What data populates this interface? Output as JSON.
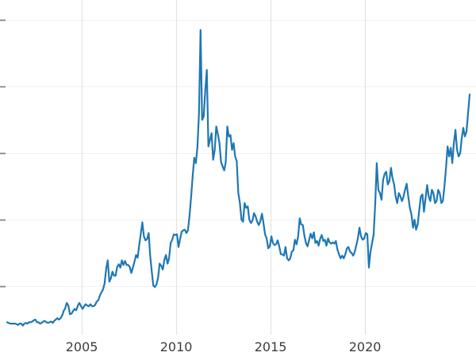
{
  "chart_data": {
    "type": "line",
    "title": "",
    "xlabel": "",
    "ylabel": "",
    "x_unit": "decimal-year",
    "x_start": 2001.042,
    "x_step": 0.0833333,
    "values": [
      4.6,
      4.5,
      4.4,
      4.4,
      4.4,
      4.4,
      4.3,
      4.2,
      4.4,
      4.4,
      4.1,
      4.4,
      4.5,
      4.4,
      4.6,
      4.6,
      4.7,
      4.9,
      5.0,
      4.6,
      4.6,
      4.4,
      4.5,
      4.7,
      4.8,
      4.6,
      4.5,
      4.6,
      4.7,
      4.5,
      4.8,
      5.0,
      5.2,
      5.0,
      5.2,
      5.6,
      6.3,
      6.7,
      7.5,
      7.1,
      5.8,
      5.9,
      6.3,
      6.6,
      6.4,
      7.1,
      7.5,
      7.0,
      6.6,
      7.0,
      7.3,
      7.1,
      7.0,
      7.3,
      7.0,
      7.0,
      7.2,
      7.7,
      7.9,
      8.6,
      9.1,
      9.5,
      10.4,
      12.6,
      13.9,
      10.7,
      11.2,
      12.2,
      11.6,
      11.6,
      12.9,
      13.3,
      12.8,
      13.9,
      13.2,
      13.8,
      13.2,
      13.2,
      12.9,
      12.0,
      12.8,
      13.7,
      14.7,
      14.3,
      16.2,
      17.8,
      19.6,
      17.5,
      16.9,
      17.1,
      18.0,
      14.6,
      12.2,
      10.1,
      9.9,
      10.3,
      11.3,
      13.4,
      13.1,
      12.5,
      14.0,
      14.7,
      13.4,
      14.2,
      16.5,
      17.0,
      17.8,
      17.7,
      17.8,
      15.9,
      17.1,
      18.2,
      18.4,
      18.5,
      18.0,
      18.4,
      20.6,
      23.4,
      26.6,
      29.3,
      28.5,
      30.8,
      35.9,
      48.5,
      35.0,
      35.5,
      39.5,
      42.5,
      31.0,
      32.0,
      33.0,
      29.0,
      30.5,
      34.0,
      32.9,
      31.5,
      28.7,
      28.0,
      27.4,
      28.6,
      34.0,
      32.5,
      32.7,
      30.5,
      31.5,
      29.5,
      28.8,
      24.0,
      22.5,
      20.0,
      19.7,
      22.5,
      21.8,
      22.0,
      20.0,
      19.5,
      19.9,
      21.0,
      20.5,
      19.7,
      19.2,
      19.8,
      20.9,
      19.5,
      17.8,
      17.2,
      15.7,
      16.0,
      17.5,
      16.5,
      16.2,
      16.3,
      16.9,
      16.0,
      14.8,
      14.8,
      14.6,
      15.9,
      14.2,
      13.9,
      14.2,
      15.2,
      15.4,
      17.0,
      16.3,
      17.5,
      20.2,
      19.3,
      19.2,
      17.6,
      16.5,
      16.0,
      17.0,
      17.9,
      17.2,
      18.1,
      16.5,
      16.8,
      16.1,
      17.1,
      17.7,
      16.8,
      17.0,
      16.1,
      17.2,
      16.6,
      16.4,
      16.6,
      16.4,
      16.8,
      15.5,
      14.8,
      14.2,
      14.6,
      14.2,
      14.8,
      15.7,
      15.9,
      15.2,
      15.0,
      14.6,
      15.2,
      16.2,
      17.2,
      18.8,
      17.5,
      17.0,
      17.2,
      18.0,
      17.8,
      12.8,
      15.2,
      16.5,
      17.8,
      22.5,
      28.5,
      24.5,
      24.0,
      23.0,
      26.0,
      26.9,
      27.2,
      25.3,
      25.8,
      27.8,
      26.2,
      25.3,
      23.5,
      22.5,
      24.0,
      23.5,
      22.8,
      23.5,
      24.5,
      25.4,
      23.5,
      21.8,
      20.8,
      18.8,
      20.0,
      18.5,
      19.3,
      21.5,
      23.5,
      23.8,
      21.2,
      23.2,
      25.2,
      23.5,
      22.8,
      24.5,
      24.0,
      22.5,
      22.8,
      24.5,
      24.0,
      22.5,
      22.8,
      25.0,
      27.8,
      31.0,
      29.5,
      30.8,
      28.5,
      31.5,
      33.5,
      30.5,
      29.5,
      30.0,
      32.2,
      33.8,
      32.5,
      33.2,
      36.0,
      38.8
    ],
    "xlim": [
      2000.67,
      2025.88
    ],
    "ylim": [
      0,
      53
    ],
    "xticks": [
      2005,
      2010,
      2015,
      2020
    ],
    "xtick_labels": [
      "2005",
      "2010",
      "2015",
      "2020"
    ],
    "yticks": [
      10,
      20,
      30,
      40,
      50
    ],
    "ytick_labels_visible": false,
    "grid": true,
    "legend": "none",
    "line_color": "#1f77b4",
    "line_width": 2.2,
    "vgrid_color": "#e3e3e3",
    "hgrid_color": "#f0f0f0",
    "tick_mark_color": "#7a7a7a",
    "tick_label_color": "#3c3c3c",
    "background": "#ffffff"
  }
}
